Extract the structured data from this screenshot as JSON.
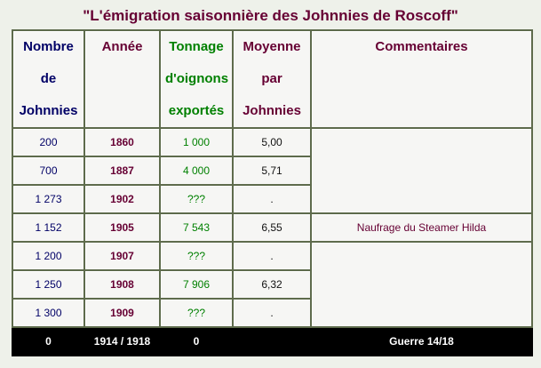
{
  "title": "\"L'émigration saisonnière des Johnnies de Roscoff\"",
  "table": {
    "headers": [
      "Nombre de Johnnies",
      "Année",
      "Tonnage d'oignons exportés",
      "Moyenne par Johnnies",
      "Commentaires"
    ],
    "rows": [
      {
        "nombre": "200",
        "annee": "1860",
        "tonnage": "1 000",
        "moyenne": "5,00"
      },
      {
        "nombre": "700",
        "annee": "1887",
        "tonnage": "4 000",
        "moyenne": "5,71"
      },
      {
        "nombre": "1 273",
        "annee": "1902",
        "tonnage": "???",
        "moyenne": "."
      },
      {
        "nombre": "1 152",
        "annee": "1905",
        "tonnage": "7 543",
        "moyenne": "6,55",
        "commentaire": "Naufrage du Steamer Hilda"
      },
      {
        "nombre": "1 200",
        "annee": "1907",
        "tonnage": "???",
        "moyenne": "."
      },
      {
        "nombre": "1 250",
        "annee": "1908",
        "tonnage": "7 906",
        "moyenne": "6,32"
      },
      {
        "nombre": "1 300",
        "annee": "1909",
        "tonnage": "???",
        "moyenne": "."
      },
      {
        "nombre": "0",
        "annee": "1914 / 1918",
        "tonnage": "0",
        "commentaire": "Guerre 14/18"
      }
    ]
  }
}
